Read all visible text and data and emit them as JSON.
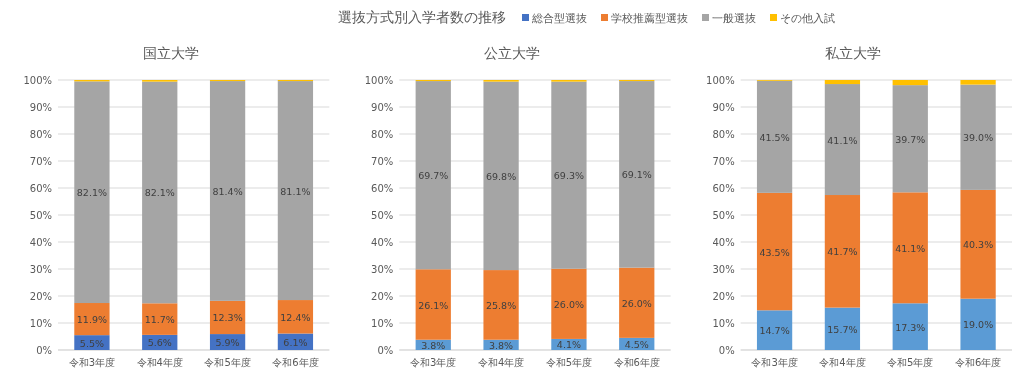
{
  "chart_data": [
    {
      "type": "bar",
      "stacked": true,
      "title": "国立大学",
      "annotations": [
        "選抜方式別入学者数の推移"
      ],
      "legend": "top",
      "grid": "y",
      "categories": [
        "令和3年度",
        "令和4年度",
        "令和5年度",
        "令和6年度"
      ],
      "ylim": [
        0,
        100
      ],
      "yticks": [
        {
          "value": 0,
          "label": "0%"
        },
        {
          "value": 10,
          "label": "10%"
        },
        {
          "value": 20,
          "label": "20%"
        },
        {
          "value": 30,
          "label": "30%"
        },
        {
          "value": 40,
          "label": "40%"
        },
        {
          "value": 50,
          "label": "50%"
        },
        {
          "value": 60,
          "label": "60%"
        },
        {
          "value": 70,
          "label": "70%"
        },
        {
          "value": 80,
          "label": "80%"
        },
        {
          "value": 90,
          "label": "90%"
        },
        {
          "value": 100,
          "label": "100%"
        }
      ],
      "series": [
        {
          "name": "総合型選抜",
          "color": "#4472c4",
          "values": [
            5.5,
            5.6,
            5.9,
            6.1
          ],
          "value_labels": [
            "5.5%",
            "5.6%",
            "5.9%",
            "6.1%"
          ]
        },
        {
          "name": "学校推薦型選抜",
          "color": "#ed7d31",
          "values": [
            11.9,
            11.7,
            12.3,
            12.4
          ],
          "value_labels": [
            "11.9%",
            "11.7%",
            "12.3%",
            "12.4%"
          ]
        },
        {
          "name": "一般選抜",
          "color": "#a5a5a5",
          "values": [
            82.1,
            82.1,
            81.4,
            81.1
          ],
          "value_labels": [
            "82.1%",
            "82.1%",
            "81.4%",
            "81.1%"
          ]
        },
        {
          "name": "その他入試",
          "color": "#ffc000",
          "values": [
            0.5,
            0.6,
            0.4,
            0.4
          ]
        }
      ]
    },
    {
      "type": "bar",
      "stacked": true,
      "title": "公立大学",
      "grid": "y",
      "categories": [
        "令和3年度",
        "令和4年度",
        "令和5年度",
        "令和6年度"
      ],
      "ylim": [
        0,
        100
      ],
      "yticks": [
        {
          "value": 0,
          "label": "0%"
        },
        {
          "value": 10,
          "label": "10%"
        },
        {
          "value": 20,
          "label": "20%"
        },
        {
          "value": 30,
          "label": "30%"
        },
        {
          "value": 40,
          "label": "40%"
        },
        {
          "value": 50,
          "label": "50%"
        },
        {
          "value": 60,
          "label": "60%"
        },
        {
          "value": 70,
          "label": "70%"
        },
        {
          "value": 80,
          "label": "80%"
        },
        {
          "value": 90,
          "label": "90%"
        },
        {
          "value": 100,
          "label": "100%"
        }
      ],
      "series": [
        {
          "color": "#5b9bd5",
          "values": [
            3.8,
            3.8,
            4.1,
            4.5
          ],
          "value_labels": [
            "3.8%",
            "3.8%",
            "4.1%",
            "4.5%"
          ]
        },
        {
          "color": "#ed7d31",
          "values": [
            26.1,
            25.8,
            26.0,
            26.0
          ],
          "value_labels": [
            "26.1%",
            "25.8%",
            "26.0%",
            "26.0%"
          ]
        },
        {
          "color": "#a5a5a5",
          "values": [
            69.7,
            69.8,
            69.3,
            69.1
          ],
          "value_labels": [
            "69.7%",
            "69.8%",
            "69.3%",
            "69.1%"
          ]
        },
        {
          "color": "#ffc000",
          "values": [
            0.4,
            0.6,
            0.6,
            0.4
          ]
        }
      ]
    },
    {
      "type": "bar",
      "stacked": true,
      "title": "私立大学",
      "grid": "y",
      "categories": [
        "令和3年度",
        "令和4年度",
        "令和5年度",
        "令和6年度"
      ],
      "ylim": [
        0,
        100
      ],
      "yticks": [
        {
          "value": 0,
          "label": "0%"
        },
        {
          "value": 10,
          "label": "10%"
        },
        {
          "value": 20,
          "label": "20%"
        },
        {
          "value": 30,
          "label": "30%"
        },
        {
          "value": 40,
          "label": "40%"
        },
        {
          "value": 50,
          "label": "50%"
        },
        {
          "value": 60,
          "label": "60%"
        },
        {
          "value": 70,
          "label": "70%"
        },
        {
          "value": 80,
          "label": "80%"
        },
        {
          "value": 90,
          "label": "90%"
        },
        {
          "value": 100,
          "label": "100%"
        }
      ],
      "series": [
        {
          "color": "#5b9bd5",
          "values": [
            14.7,
            15.7,
            17.3,
            19.0
          ],
          "value_labels": [
            "14.7%",
            "15.7%",
            "17.3%",
            "19.0%"
          ]
        },
        {
          "color": "#ed7d31",
          "values": [
            43.5,
            41.7,
            41.1,
            40.3
          ],
          "value_labels": [
            "43.5%",
            "41.7%",
            "41.1%",
            "40.3%"
          ]
        },
        {
          "color": "#a5a5a5",
          "values": [
            41.5,
            41.1,
            39.7,
            39.0
          ],
          "value_labels": [
            "41.5%",
            "41.1%",
            "39.7%",
            "39.0%"
          ]
        },
        {
          "color": "#ffc000",
          "values": [
            0.3,
            1.5,
            1.9,
            1.7
          ]
        }
      ]
    }
  ]
}
